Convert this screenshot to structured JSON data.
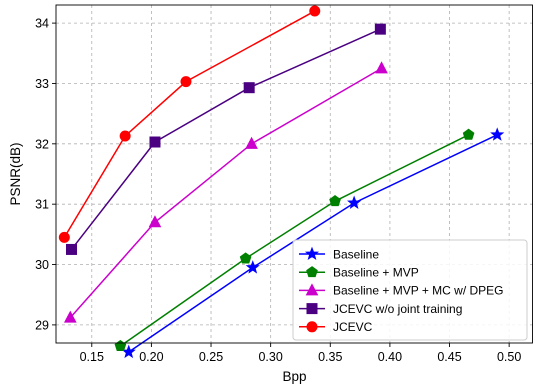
{
  "chart_data": {
    "type": "line",
    "xlabel": "Bpp",
    "ylabel": "PSNR(dB)",
    "xlim": [
      0.12,
      0.52
    ],
    "ylim": [
      28.7,
      34.3
    ],
    "xticks": [
      "0.15",
      "0.20",
      "0.25",
      "0.30",
      "0.35",
      "0.40",
      "0.45",
      "0.50"
    ],
    "xtick_values": [
      0.15,
      0.2,
      0.25,
      0.3,
      0.35,
      0.4,
      0.45,
      0.5
    ],
    "yticks": [
      "29",
      "30",
      "31",
      "32",
      "33",
      "34"
    ],
    "ytick_values": [
      29,
      30,
      31,
      32,
      33,
      34
    ],
    "grid": true,
    "legend_position": "bottom-right",
    "series": [
      {
        "name": "Baseline",
        "color": "#0000ff",
        "marker": "star",
        "x": [
          0.181,
          0.285,
          0.37,
          0.49
        ],
        "y": [
          28.55,
          29.95,
          31.02,
          32.15
        ]
      },
      {
        "name": "Baseline + MVP",
        "color": "#008000",
        "marker": "pentagon",
        "x": [
          0.174,
          0.279,
          0.354,
          0.466
        ],
        "y": [
          28.65,
          30.1,
          31.05,
          32.15
        ]
      },
      {
        "name": "Baseline + MVP + MC w/ DPEG",
        "color": "#cc00cc",
        "marker": "triangle",
        "x": [
          0.132,
          0.203,
          0.284,
          0.393
        ],
        "y": [
          29.12,
          30.7,
          32.0,
          33.25
        ]
      },
      {
        "name": "JCEVC w/o joint training",
        "color": "#4b0082",
        "marker": "square",
        "x": [
          0.133,
          0.203,
          0.282,
          0.392
        ],
        "y": [
          30.25,
          32.03,
          32.93,
          33.9
        ]
      },
      {
        "name": "JCEVC",
        "color": "#ff0000",
        "marker": "circle",
        "x": [
          0.127,
          0.178,
          0.229,
          0.337
        ],
        "y": [
          30.45,
          32.13,
          33.03,
          34.2
        ]
      }
    ]
  }
}
